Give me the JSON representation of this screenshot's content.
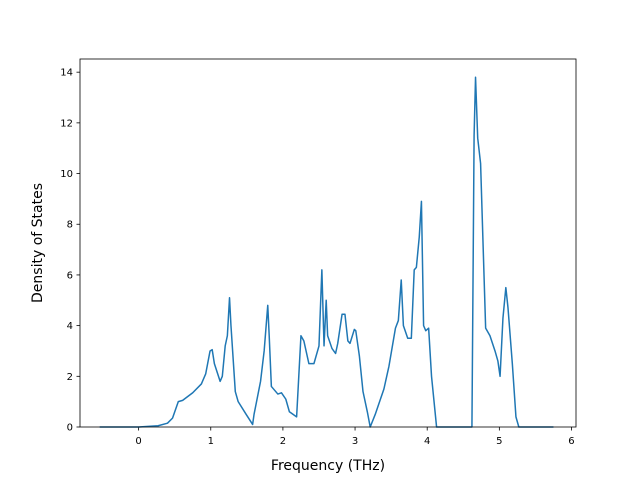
{
  "chart_data": {
    "type": "line",
    "xlabel": "Frequency (THz)",
    "ylabel": "Density of States",
    "color": "#1f77b4",
    "x": [
      -0.54,
      0,
      0.27,
      0.4,
      0.47,
      0.55,
      0.61,
      0.75,
      0.87,
      0.93,
      0.99,
      1.02,
      1.05,
      1.13,
      1.16,
      1.2,
      1.23,
      1.26,
      1.28,
      1.34,
      1.38,
      1.49,
      1.58,
      1.6,
      1.69,
      1.74,
      1.79,
      1.81,
      1.84,
      1.93,
      1.98,
      2.04,
      2.09,
      2.19,
      2.25,
      2.29,
      2.36,
      2.43,
      2.5,
      2.54,
      2.57,
      2.6,
      2.62,
      2.68,
      2.73,
      2.76,
      2.82,
      2.86,
      2.9,
      2.93,
      2.99,
      3.01,
      3.06,
      3.11,
      3.17,
      3.21,
      3.28,
      3.4,
      3.47,
      3.56,
      3.6,
      3.64,
      3.67,
      3.73,
      3.78,
      3.82,
      3.85,
      3.89,
      3.92,
      3.95,
      3.98,
      4.02,
      4.06,
      4.13,
      4.62,
      4.65,
      4.67,
      4.7,
      4.74,
      4.81,
      4.87,
      4.94,
      4.98,
      5.01,
      5.05,
      5.09,
      5.12,
      5.18,
      5.23,
      5.27,
      5.75
    ],
    "values": [
      0,
      0,
      0.05,
      0.15,
      0.35,
      1.0,
      1.05,
      1.35,
      1.7,
      2.1,
      3.0,
      3.05,
      2.5,
      1.8,
      2.0,
      3.2,
      3.6,
      5.1,
      4.0,
      1.4,
      1.0,
      0.5,
      0.1,
      0.5,
      1.8,
      3.0,
      4.8,
      3.6,
      1.6,
      1.3,
      1.35,
      1.1,
      0.6,
      0.4,
      3.6,
      3.4,
      2.5,
      2.5,
      3.2,
      6.2,
      3.2,
      5.0,
      3.6,
      3.1,
      2.9,
      3.3,
      4.45,
      4.45,
      3.4,
      3.3,
      3.85,
      3.8,
      2.8,
      1.4,
      0.6,
      0,
      0.5,
      1.5,
      2.4,
      3.9,
      4.2,
      5.8,
      4.0,
      3.5,
      3.5,
      6.2,
      6.3,
      7.5,
      8.9,
      4.0,
      3.8,
      3.9,
      2.0,
      0,
      0,
      11.5,
      13.8,
      11.4,
      10.4,
      3.9,
      3.6,
      3.0,
      2.6,
      2.0,
      4.3,
      5.5,
      4.7,
      2.5,
      0.4,
      0,
      0
    ],
    "xlim": [
      -0.8125,
      6.0625
    ],
    "xticks": [
      0,
      1,
      2,
      3,
      4,
      5,
      6
    ],
    "ylim": [
      0,
      14.52
    ],
    "yticks": [
      0,
      2,
      4,
      6,
      8,
      10,
      12,
      14
    ]
  }
}
